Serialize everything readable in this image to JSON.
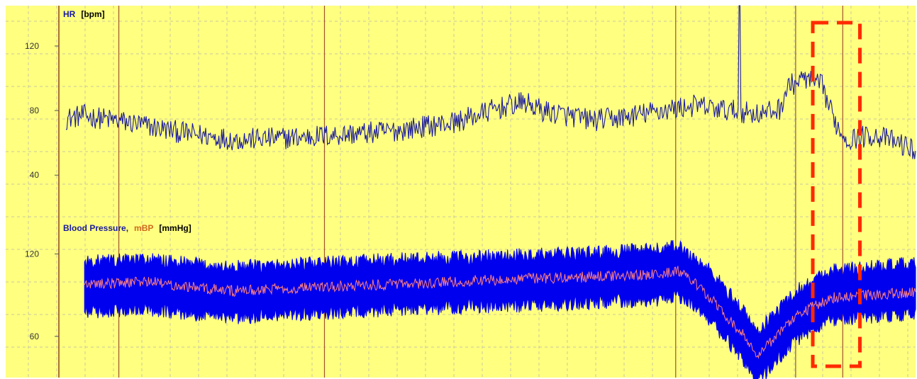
{
  "chart_data": [
    {
      "type": "line",
      "title_parts": [
        {
          "text": "HR",
          "color": "#1a1a9e"
        },
        {
          "text": "[bpm]",
          "color": "#000000"
        }
      ],
      "y_ticks": [
        "40",
        "80",
        "120"
      ],
      "ylim": [
        30,
        145
      ],
      "grid": true,
      "event_marker_positions": [
        0.07,
        0.31,
        0.72,
        0.86,
        0.915
      ],
      "series": [
        {
          "color": "#1a1a9e",
          "baseline": [
            [
              0.0,
              75
            ],
            [
              0.02,
              77
            ],
            [
              0.08,
              72
            ],
            [
              0.14,
              66
            ],
            [
              0.2,
              62
            ],
            [
              0.26,
              63
            ],
            [
              0.32,
              65
            ],
            [
              0.38,
              67
            ],
            [
              0.42,
              70
            ],
            [
              0.46,
              73
            ],
            [
              0.5,
              80
            ],
            [
              0.52,
              83
            ],
            [
              0.54,
              85
            ],
            [
              0.56,
              80
            ],
            [
              0.6,
              76
            ],
            [
              0.62,
              74
            ],
            [
              0.66,
              76
            ],
            [
              0.7,
              80
            ],
            [
              0.74,
              83
            ],
            [
              0.78,
              80
            ],
            [
              0.82,
              78
            ],
            [
              0.84,
              81
            ],
            [
              0.85,
              95
            ],
            [
              0.87,
              100
            ],
            [
              0.89,
              95
            ],
            [
              0.9,
              80
            ],
            [
              0.91,
              68
            ],
            [
              0.92,
              62
            ],
            [
              0.95,
              65
            ],
            [
              0.98,
              60
            ],
            [
              1.0,
              55
            ]
          ],
          "noise_amplitude": 7,
          "spike": {
            "position": 0.793,
            "value": 145
          }
        }
      ]
    },
    {
      "type": "area",
      "title_parts": [
        {
          "text": "Blood Pressure,",
          "color": "#1a1a9e"
        },
        {
          "text": "mBP",
          "color": "#d2691e"
        },
        {
          "text": "[mmHg]",
          "color": "#000000"
        }
      ],
      "y_ticks": [
        "60",
        "120"
      ],
      "ylim": [
        30,
        145
      ],
      "grid": true,
      "series": [
        {
          "name": "Blood Pressure",
          "color": "#0000ee",
          "center": [
            [
              0.03,
              96
            ],
            [
              0.1,
              98
            ],
            [
              0.2,
              92
            ],
            [
              0.3,
              95
            ],
            [
              0.4,
              98
            ],
            [
              0.5,
              100
            ],
            [
              0.6,
              102
            ],
            [
              0.66,
              104
            ],
            [
              0.7,
              105
            ],
            [
              0.722,
              108
            ],
            [
              0.74,
              100
            ],
            [
              0.76,
              90
            ],
            [
              0.8,
              60
            ],
            [
              0.815,
              45
            ],
            [
              0.83,
              55
            ],
            [
              0.86,
              75
            ],
            [
              0.9,
              90
            ],
            [
              1.0,
              95
            ]
          ],
          "band_half_width": 18
        },
        {
          "name": "mBP",
          "color": "#ff7f7f",
          "values": [
            [
              0.03,
              98
            ],
            [
              0.1,
              100
            ],
            [
              0.2,
              93
            ],
            [
              0.3,
              96
            ],
            [
              0.4,
              98
            ],
            [
              0.5,
              101
            ],
            [
              0.6,
              103
            ],
            [
              0.7,
              105
            ],
            [
              0.722,
              108
            ],
            [
              0.74,
              100
            ],
            [
              0.76,
              88
            ],
            [
              0.8,
              60
            ],
            [
              0.815,
              45
            ],
            [
              0.83,
              55
            ],
            [
              0.86,
              75
            ],
            [
              0.9,
              88
            ],
            [
              1.0,
              92
            ]
          ]
        }
      ]
    }
  ],
  "highlight_box": {
    "x_start": 0.88,
    "x_end": 0.935,
    "color": "#ff2a00"
  }
}
